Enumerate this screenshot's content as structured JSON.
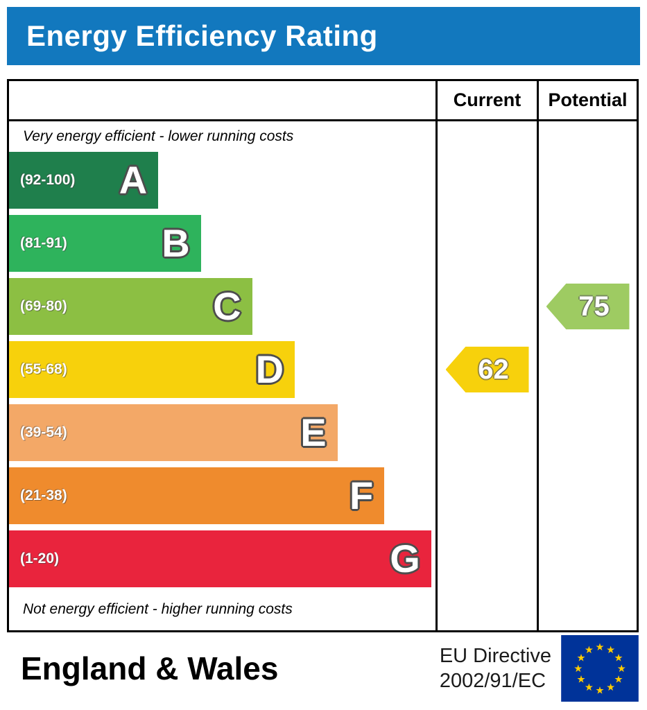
{
  "title": "Energy Efficiency Rating",
  "table": {
    "current_header": "Current",
    "potential_header": "Potential"
  },
  "captions": {
    "top": "Very energy efficient - lower running costs",
    "bottom": "Not energy efficient - higher running costs"
  },
  "footer": {
    "region": "England & Wales",
    "directive_line1": "EU Directive",
    "directive_line2": "2002/91/EC"
  },
  "colors": {
    "title_bar_bg": "#1278be",
    "title_text": "#ffffff",
    "border": "#000000",
    "eu_flag_bg": "#003399",
    "eu_flag_stars": "#ffcc00",
    "current_arrow": "#f7d10c",
    "potential_arrow": "#9ecb62"
  },
  "chart_data": {
    "type": "bar",
    "subtype": "epc-energy-efficiency-rating",
    "title": "Energy Efficiency Rating",
    "bands": [
      {
        "letter": "A",
        "range": "(92-100)",
        "min": 92,
        "max": 100,
        "color": "#1f7f4c",
        "width_pct": 35
      },
      {
        "letter": "B",
        "range": "(81-91)",
        "min": 81,
        "max": 91,
        "color": "#2eb35c",
        "width_pct": 45
      },
      {
        "letter": "C",
        "range": "(69-80)",
        "min": 69,
        "max": 80,
        "color": "#8cbf43",
        "width_pct": 57
      },
      {
        "letter": "D",
        "range": "(55-68)",
        "min": 55,
        "max": 68,
        "color": "#f7d10c",
        "width_pct": 67
      },
      {
        "letter": "E",
        "range": "(39-54)",
        "min": 39,
        "max": 54,
        "color": "#f3a867",
        "width_pct": 77
      },
      {
        "letter": "F",
        "range": "(21-38)",
        "min": 21,
        "max": 38,
        "color": "#ef8b2d",
        "width_pct": 88
      },
      {
        "letter": "G",
        "range": "(1-20)",
        "min": 1,
        "max": 20,
        "color": "#e9243d",
        "width_pct": 99
      }
    ],
    "current": {
      "value": 62,
      "band": "D"
    },
    "potential": {
      "value": 75,
      "band": "C"
    }
  }
}
